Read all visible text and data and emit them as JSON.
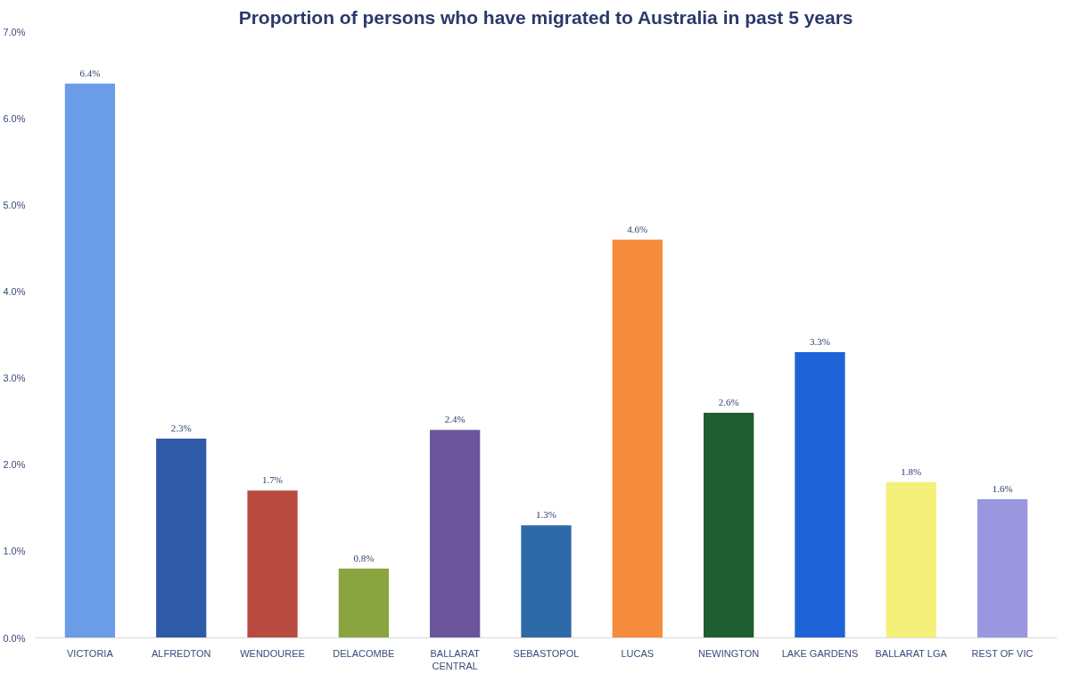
{
  "chart_data": {
    "type": "bar",
    "title": "Proportion of persons who have migrated to Australia in past 5 years",
    "categories": [
      "VICTORIA",
      "ALFREDTON",
      "WENDOUREE",
      "DELACOMBE",
      "BALLARAT\nCENTRAL",
      "SEBASTOPOL",
      "LUCAS",
      "NEWINGTON",
      "LAKE GARDENS",
      "BALLARAT LGA",
      "REST OF VIC"
    ],
    "values": [
      6.4,
      2.3,
      1.7,
      0.8,
      2.4,
      1.3,
      4.6,
      2.6,
      3.3,
      1.8,
      1.6
    ],
    "value_labels": [
      "6.4%",
      "2.3%",
      "1.7%",
      "0.8%",
      "2.4%",
      "1.3%",
      "4.6%",
      "2.6%",
      "3.3%",
      "1.8%",
      "1.6%"
    ],
    "colors": [
      "#6a9ce8",
      "#2f5aa8",
      "#b84a3f",
      "#8aa43f",
      "#6a559c",
      "#2e6aa8",
      "#f58b3c",
      "#1e5e30",
      "#1f63d8",
      "#f5f07a",
      "#9a97e0"
    ],
    "ylim": [
      0,
      7
    ],
    "yticks": [
      {
        "value": 0,
        "label": "0.0%"
      },
      {
        "value": 1,
        "label": "1.0%"
      },
      {
        "value": 2,
        "label": "2.0%"
      },
      {
        "value": 3,
        "label": "3.0%"
      },
      {
        "value": 4,
        "label": "4.0%"
      },
      {
        "value": 5,
        "label": "5.0%"
      },
      {
        "value": 6,
        "label": "6.0%"
      },
      {
        "value": 7,
        "label": "7.0%"
      }
    ]
  }
}
